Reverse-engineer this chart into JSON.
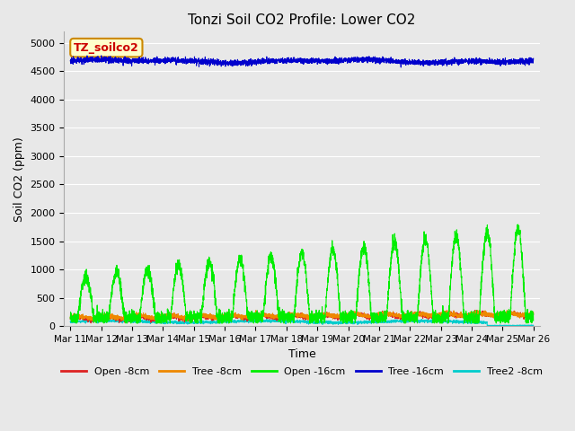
{
  "title": "Tonzi Soil CO2 Profile: Lower CO2",
  "xlabel": "Time",
  "ylabel": "Soil CO2 (ppm)",
  "ylim": [
    0,
    5200
  ],
  "yticks": [
    0,
    500,
    1000,
    1500,
    2000,
    2500,
    3000,
    3500,
    4000,
    4500,
    5000
  ],
  "fig_bg_color": "#e8e8e8",
  "ax_bg_color": "#e8e8e8",
  "grid_color": "#ffffff",
  "legend_label": "TZ_soilco2",
  "legend_box_color": "#ffffcc",
  "legend_box_edge": "#cc8800",
  "legend_text_color": "#cc0000",
  "xtick_labels": [
    "Mar 11",
    "Mar 12",
    "Mar 13",
    "Mar 14",
    "Mar 15",
    "Mar 16",
    "Mar 17",
    "Mar 18",
    "Mar 19",
    "Mar 20",
    "Mar 21",
    "Mar 22",
    "Mar 23",
    "Mar 24",
    "Mar 25",
    "Mar 26"
  ],
  "series": {
    "open_8cm": {
      "color": "#dd2222",
      "label": "Open -8cm"
    },
    "tree_8cm": {
      "color": "#ee8800",
      "label": "Tree -8cm"
    },
    "open_16cm": {
      "color": "#00ee00",
      "label": "Open -16cm"
    },
    "tree_16cm": {
      "color": "#0000cc",
      "label": "Tree -16cm"
    },
    "tree2_8cm": {
      "color": "#00cccc",
      "label": "Tree2 -8cm"
    }
  }
}
